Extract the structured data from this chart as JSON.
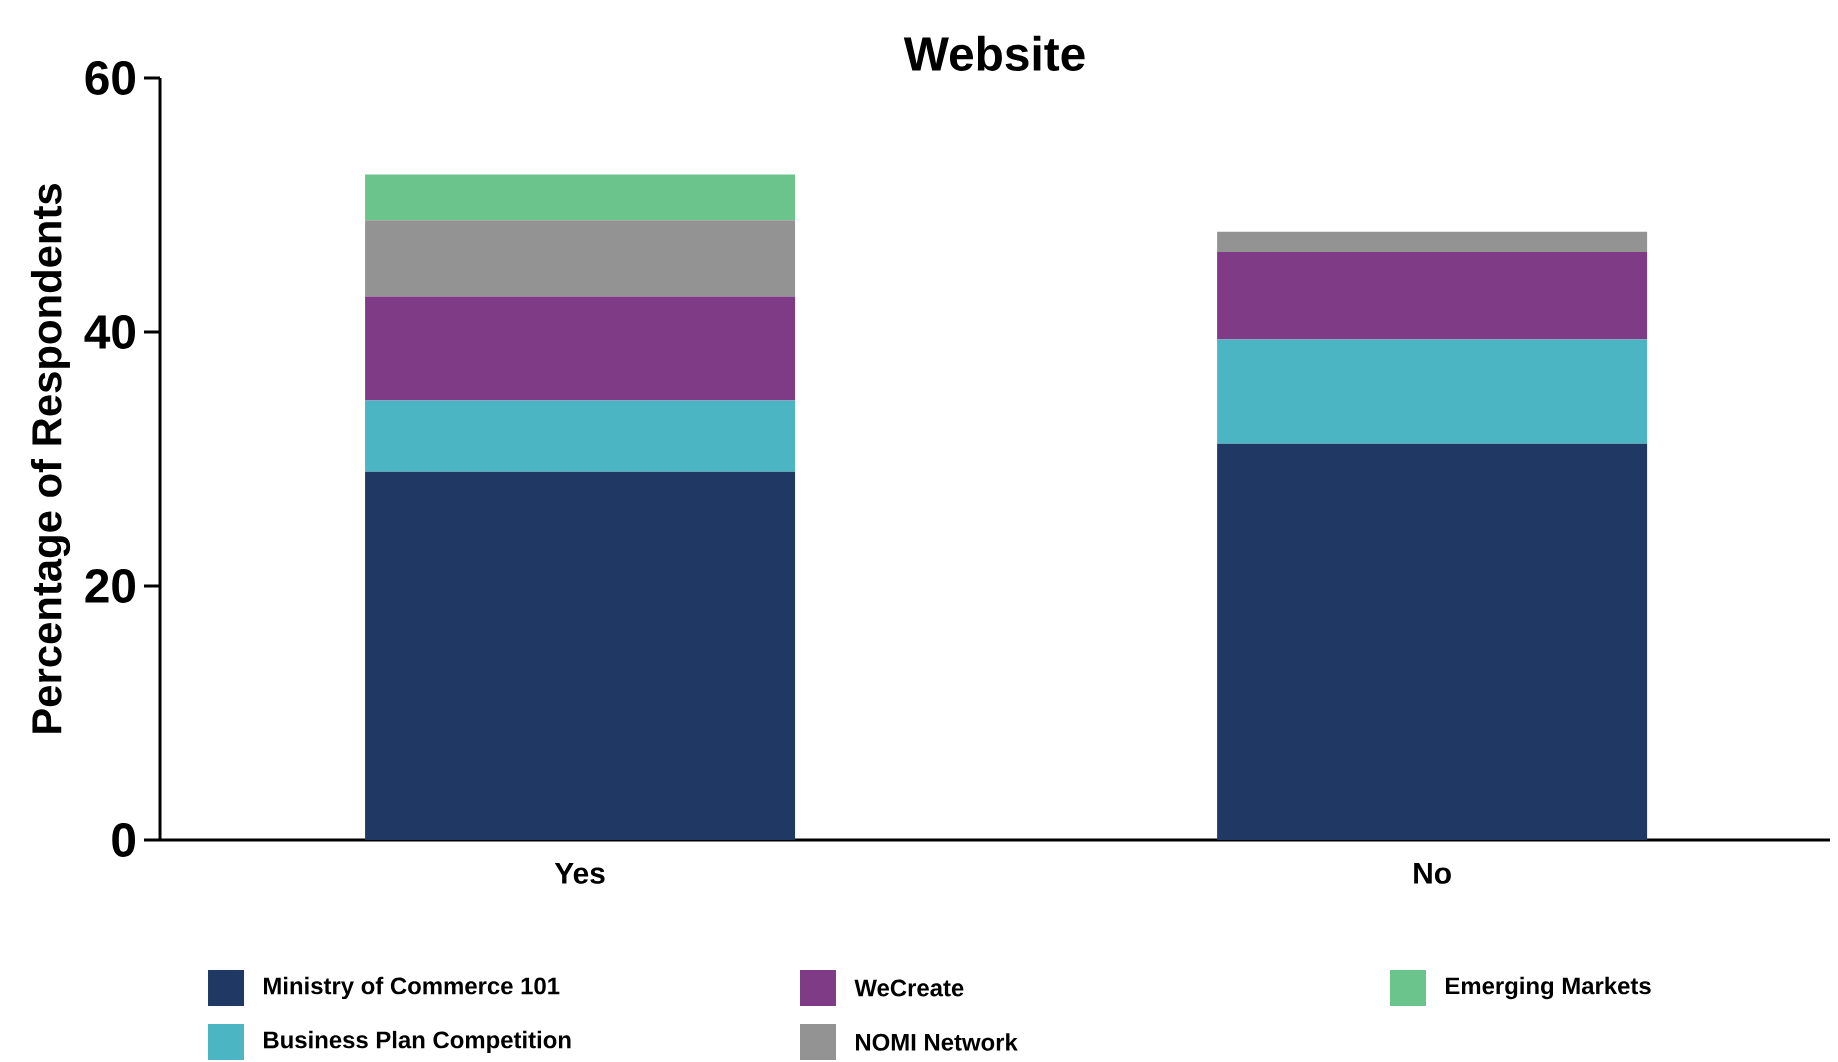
{
  "chart_data": {
    "type": "bar",
    "title": "Website",
    "ylabel": "Percentage of Respondents",
    "stacked": true,
    "categories": [
      "Yes",
      "No"
    ],
    "series": [
      {
        "name": "Ministry of Commerce 101",
        "color": "#203864",
        "values": [
          29.0,
          31.2
        ]
      },
      {
        "name": "Business Plan Competition",
        "color": "#4bb5c3",
        "values": [
          5.6,
          8.2
        ]
      },
      {
        "name": "WeCreate",
        "color": "#7f3b85",
        "values": [
          8.2,
          6.9
        ]
      },
      {
        "name": "NOMI Network",
        "color": "#939393",
        "values": [
          6.0,
          1.6
        ]
      },
      {
        "name": "Emerging Markets",
        "color": "#6bc48c",
        "values": [
          3.6,
          0
        ]
      }
    ],
    "ylim": [
      0,
      60
    ],
    "yticks": [
      0,
      20,
      40,
      60
    ],
    "grid": false,
    "legend": "bottom"
  }
}
